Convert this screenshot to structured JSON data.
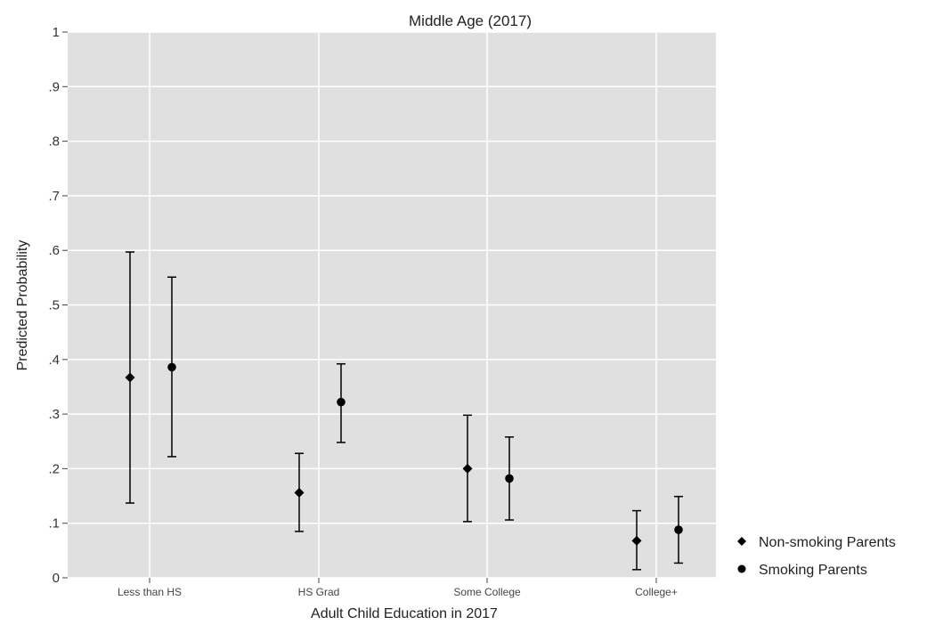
{
  "chart_data": {
    "type": "scatter",
    "title": "Middle Age (2017)",
    "xlabel": "Adult Child Education in 2017",
    "ylabel": "Predicted Probability",
    "ylim": [
      0,
      1
    ],
    "y_ticks": [
      "0",
      ".1",
      ".2",
      ".3",
      ".4",
      ".5",
      ".6",
      ".7",
      ".8",
      ".9",
      "1"
    ],
    "categories": [
      "Less than HS",
      "HS Grad",
      "Some College",
      "College+"
    ],
    "grid": true,
    "legend_position": "right",
    "series": [
      {
        "name": "Non-smoking Parents",
        "marker": "diamond",
        "color": "#000000",
        "values": [
          0.367,
          0.156,
          0.2,
          0.068
        ],
        "ci_low": [
          0.137,
          0.085,
          0.103,
          0.015
        ],
        "ci_high": [
          0.597,
          0.228,
          0.298,
          0.123
        ]
      },
      {
        "name": "Smoking Parents",
        "marker": "circle",
        "color": "#000000",
        "values": [
          0.386,
          0.322,
          0.182,
          0.088
        ],
        "ci_low": [
          0.222,
          0.248,
          0.106,
          0.027
        ],
        "ci_high": [
          0.551,
          0.392,
          0.258,
          0.149
        ]
      }
    ],
    "colors": {
      "plot_bg": "#e0e0e0",
      "grid": "#ffffff",
      "text": "#222222"
    }
  }
}
